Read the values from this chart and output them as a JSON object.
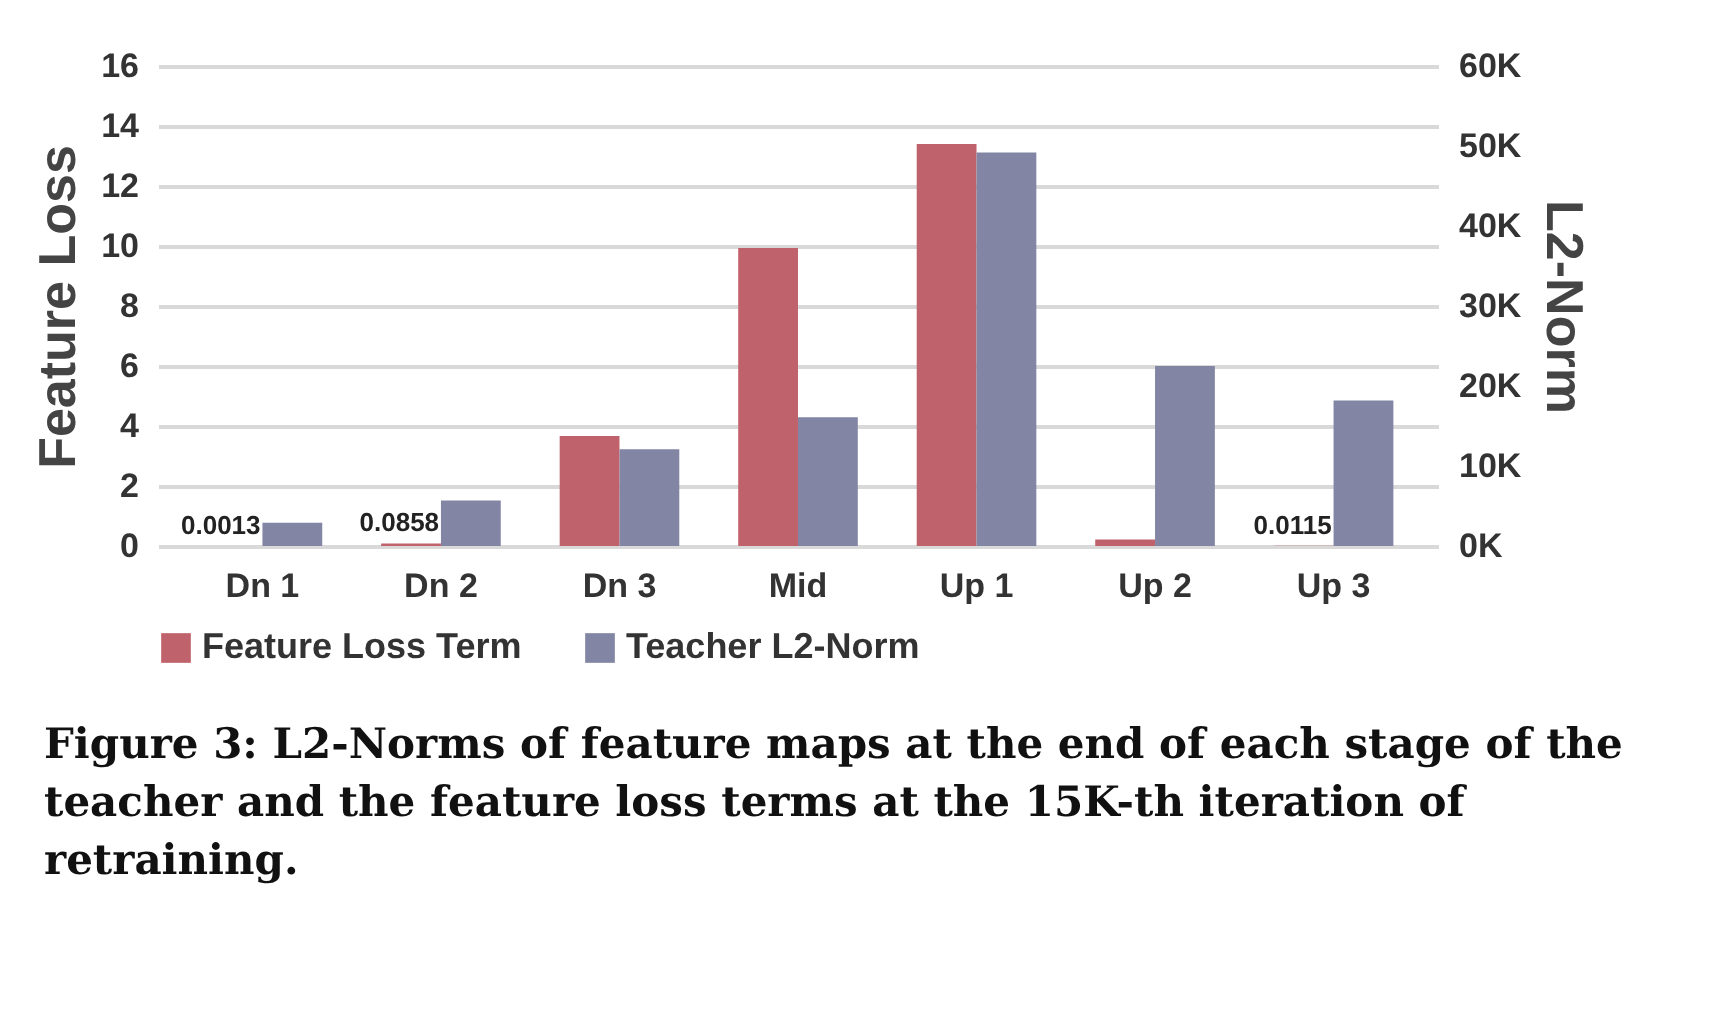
{
  "chart_data": {
    "type": "bar",
    "ylabel": "Feature Loss",
    "y2label": "L2-Norm",
    "categories": [
      "Dn 1",
      "Dn 2",
      "Dn 3",
      "Mid",
      "Up 1",
      "Up 2",
      "Up 3"
    ],
    "series": [
      {
        "name": "Feature Loss Term",
        "color": "#c0626b",
        "values": [
          0.0013,
          0.0858,
          3.67,
          9.93,
          13.4,
          0.22,
          0.0115
        ],
        "value_labels": [
          "0.0013",
          "0.0858",
          null,
          null,
          null,
          null,
          "0.0115"
        ]
      },
      {
        "name": "Teacher L2-Norm",
        "color": "#8285a4",
        "axis": "y2",
        "values": [
          2900,
          5700,
          12100,
          16100,
          49200,
          22500,
          18200
        ]
      }
    ],
    "ylim": [
      0,
      16
    ],
    "yticks": [
      0,
      2,
      4,
      6,
      8,
      10,
      12,
      14,
      16
    ],
    "y2lim": [
      0,
      60000
    ],
    "y2ticks": [
      {
        "value": 0,
        "label": "0K"
      },
      {
        "value": 10000,
        "label": "10K"
      },
      {
        "value": 20000,
        "label": "20K"
      },
      {
        "value": 30000,
        "label": "30K"
      },
      {
        "value": 40000,
        "label": "40K"
      },
      {
        "value": 50000,
        "label": "50K"
      },
      {
        "value": 60000,
        "label": "60K"
      }
    ],
    "grid": "y",
    "legend": "bottom",
    "annotations": [
      "Figure 3: L2-Norms of feature maps at the end of each stage of the teacher and the feature loss terms at the 15K-th iteration of retraining."
    ]
  }
}
